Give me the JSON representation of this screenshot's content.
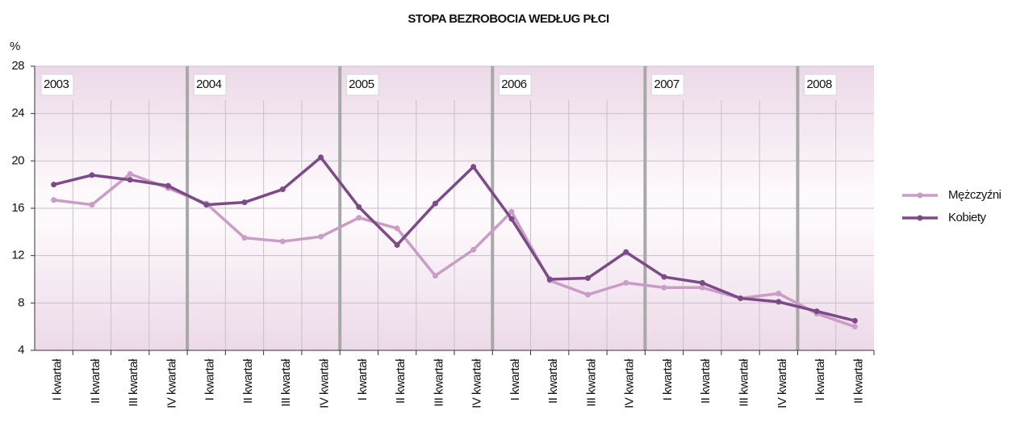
{
  "chart_data": {
    "type": "line",
    "title": "STOPA BEZROBOCIA WEDŁUG PŁCI",
    "y_label": "%",
    "groups": [
      {
        "label": "2003",
        "categories": [
          "I kwartał",
          "II kwartał",
          "III kwartał",
          "IV kwartał"
        ]
      },
      {
        "label": "2004",
        "categories": [
          "I kwartał",
          "II kwartał",
          "III kwartał",
          "IV kwartał"
        ]
      },
      {
        "label": "2005",
        "categories": [
          "I kwartał",
          "II kwartał",
          "III kwartał",
          "IV kwartał"
        ]
      },
      {
        "label": "2006",
        "categories": [
          "I kwartał",
          "II kwartał",
          "III kwartał",
          "IV kwartał"
        ]
      },
      {
        "label": "2007",
        "categories": [
          "I kwartał",
          "II kwartał",
          "III kwartał",
          "IV kwartał"
        ]
      },
      {
        "label": "2008",
        "categories": [
          "I kwartał",
          "II kwartał"
        ]
      }
    ],
    "series": [
      {
        "name": "Mężczyźni",
        "color": "#c99dc6",
        "values": [
          16.7,
          16.3,
          18.9,
          17.7,
          16.4,
          13.5,
          13.2,
          13.6,
          15.2,
          14.3,
          10.3,
          12.5,
          15.7,
          9.9,
          8.7,
          9.7,
          9.3,
          9.3,
          8.4,
          8.8,
          7.1,
          6.0
        ]
      },
      {
        "name": "Kobiety",
        "color": "#7b4a87",
        "values": [
          18.0,
          18.8,
          18.4,
          17.9,
          16.3,
          16.5,
          17.6,
          20.3,
          16.1,
          12.9,
          16.4,
          19.5,
          15.1,
          10.0,
          10.1,
          12.3,
          10.2,
          9.7,
          8.4,
          8.1,
          7.3,
          6.5
        ]
      }
    ],
    "ylim": [
      4,
      28
    ],
    "yticks": [
      4,
      8,
      12,
      16,
      20,
      24,
      28
    ],
    "grid": true,
    "legend": "right"
  }
}
